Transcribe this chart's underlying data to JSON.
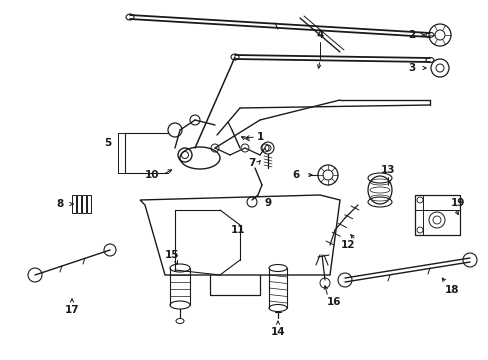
{
  "background_color": "#ffffff",
  "line_color": "#1a1a1a",
  "fig_width": 4.89,
  "fig_height": 3.6,
  "dpi": 100,
  "label_fs": 7.5,
  "lw_main": 1.0,
  "lw_thin": 0.6
}
